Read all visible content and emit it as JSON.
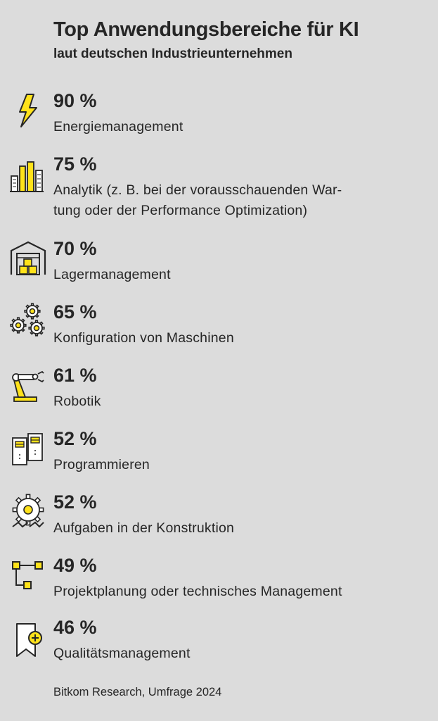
{
  "chart_data": {
    "type": "table",
    "title": "Top Anwendungsbereiche für KI",
    "subtitle": "laut deutschen Industrieunternehmen",
    "categories": [
      "Energiemanagement",
      "Analytik (z. B. bei der vorausschauenden War-\ntung oder der Performance Optimization)",
      "Lagermanagement",
      "Konfiguration von Maschinen",
      "Robotik",
      "Programmieren",
      "Aufgaben in der Konstruktion",
      "Projektplanung oder technisches Management",
      "Qualitätsmanagement"
    ],
    "values": [
      90,
      75,
      70,
      65,
      61,
      52,
      52,
      49,
      46
    ],
    "value_labels": [
      "90 %",
      "75 %",
      "70 %",
      "65 %",
      "61 %",
      "52 %",
      "52 %",
      "49 %",
      "46 %"
    ],
    "icons": [
      "lightning-icon",
      "bar-chart-icon",
      "warehouse-icon",
      "gears-icon",
      "robot-arm-icon",
      "computer-towers-icon",
      "gear-wave-icon",
      "flowchart-icon",
      "quality-bookmark-icon"
    ],
    "source": "Bitkom Research, Umfrage 2024"
  },
  "colors": {
    "background": "#dcdcdc",
    "text": "#262626",
    "accent": "#ffe21a"
  }
}
